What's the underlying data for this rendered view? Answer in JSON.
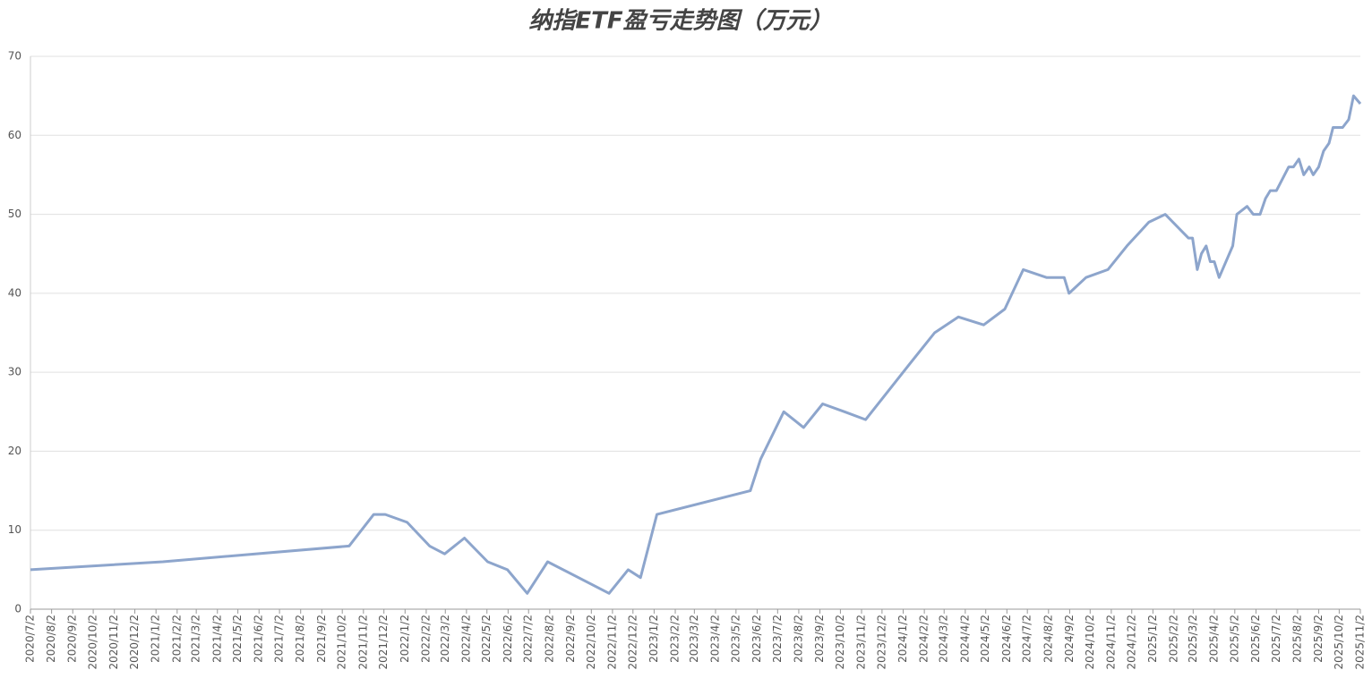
{
  "chart_data": {
    "type": "line",
    "title": "纳指ETF盈亏走势图（万元）",
    "x": [
      "2020/7/2",
      "2021/1/12",
      "2021/10/12",
      "2021/11/17",
      "2021/12/4",
      "2022/1/5",
      "2022/2/7",
      "2022/3/1",
      "2022/3/30",
      "2022/5/3",
      "2022/6/1",
      "2022/6/30",
      "2022/7/30",
      "2022/10/28",
      "2022/11/25",
      "2022/12/13",
      "2023/1/6",
      "2023/5/23",
      "2023/6/7",
      "2023/7/11",
      "2023/8/9",
      "2023/9/6",
      "2023/10/8",
      "2023/11/8",
      "2024/1/11",
      "2024/2/17",
      "2024/3/23",
      "2024/4/29",
      "2024/5/30",
      "2024/6/26",
      "2024/7/30",
      "2024/8/25",
      "2024/9/1",
      "2024/9/26",
      "2024/10/28",
      "2024/11/25",
      "2024/12/27",
      "2025/1/20",
      "2025/2/23",
      "2025/3/1",
      "2025/3/8",
      "2025/3/14",
      "2025/3/21",
      "2025/3/27",
      "2025/4/2",
      "2025/4/9",
      "2025/4/29",
      "2025/5/5",
      "2025/5/20",
      "2025/5/29",
      "2025/6/8",
      "2025/6/16",
      "2025/6/23",
      "2025/7/2",
      "2025/7/20",
      "2025/7/27",
      "2025/8/4",
      "2025/8/11",
      "2025/8/19",
      "2025/8/25",
      "2025/9/2",
      "2025/9/9",
      "2025/9/17",
      "2025/9/23",
      "2025/10/7",
      "2025/10/16",
      "2025/10/23",
      "2025/11/2"
    ],
    "values": [
      5,
      6,
      8,
      12,
      12,
      11,
      8,
      7,
      9,
      6,
      5,
      2,
      6,
      2,
      5,
      4,
      12,
      15,
      19,
      25,
      23,
      26,
      25,
      24,
      31,
      35,
      37,
      36,
      38,
      43,
      42,
      42,
      40,
      42,
      43,
      46,
      49,
      50,
      47,
      47,
      43,
      45,
      46,
      44,
      44,
      42,
      46,
      50,
      51,
      50,
      50,
      52,
      53,
      53,
      56,
      56,
      57,
      55,
      56,
      55,
      56,
      58,
      59,
      61,
      61,
      62,
      65,
      64
    ],
    "color": "#8da5cc",
    "xlim": [
      "2020/7/2",
      "2025/11/2"
    ],
    "xticks": [
      "2020/7/2",
      "2020/8/2",
      "2020/9/2",
      "2020/10/2",
      "2020/11/2",
      "2020/12/2",
      "2021/1/2",
      "2021/2/2",
      "2021/3/2",
      "2021/4/2",
      "2021/5/2",
      "2021/6/2",
      "2021/7/2",
      "2021/8/2",
      "2021/9/2",
      "2021/10/2",
      "2021/11/2",
      "2021/12/2",
      "2022/1/2",
      "2022/2/2",
      "2022/3/2",
      "2022/4/2",
      "2022/5/2",
      "2022/6/2",
      "2022/7/2",
      "2022/8/2",
      "2022/9/2",
      "2022/10/2",
      "2022/11/2",
      "2022/12/2",
      "2023/1/2",
      "2023/2/2",
      "2023/3/2",
      "2023/4/2",
      "2023/5/2",
      "2023/6/2",
      "2023/7/2",
      "2023/8/2",
      "2023/9/2",
      "2023/10/2",
      "2023/11/2",
      "2023/12/2",
      "2024/1/2",
      "2024/2/2",
      "2024/3/2",
      "2024/4/2",
      "2024/5/2",
      "2024/6/2",
      "2024/7/2",
      "2024/8/2",
      "2024/9/2",
      "2024/10/2",
      "2024/11/2",
      "2024/12/2",
      "2025/1/2",
      "2025/2/2",
      "2025/3/2",
      "2025/4/2",
      "2025/5/2",
      "2025/6/2",
      "2025/7/2",
      "2025/8/2",
      "2025/9/2",
      "2025/10/2",
      "2025/11/2"
    ],
    "ylim": [
      0,
      70
    ],
    "yticks": [
      0,
      10,
      20,
      30,
      40,
      50,
      60,
      70
    ],
    "grid": true
  }
}
